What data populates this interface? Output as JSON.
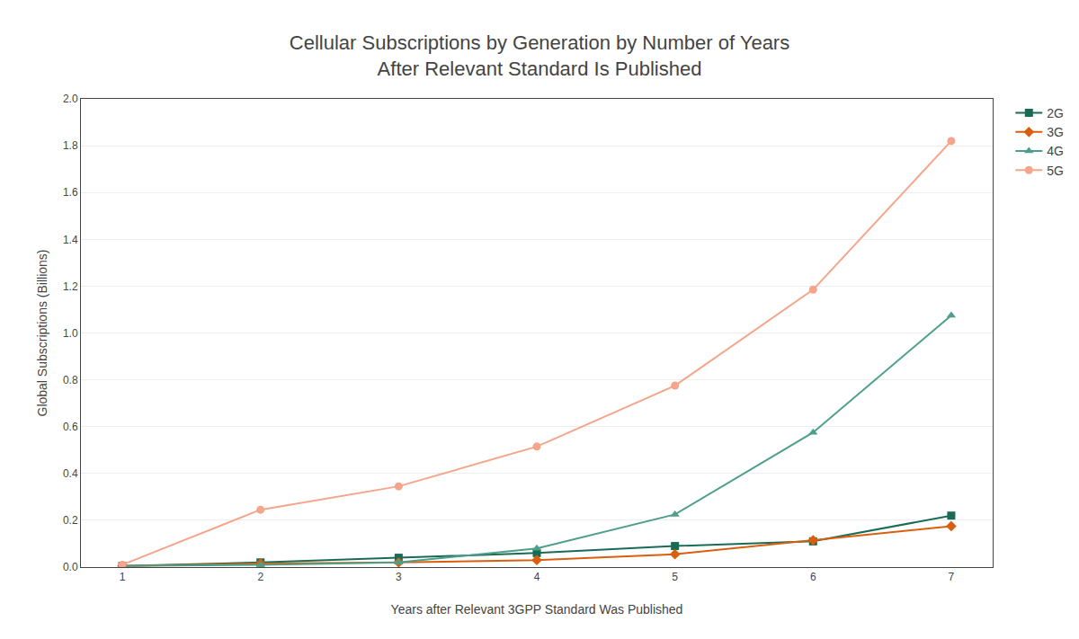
{
  "chart_data": {
    "type": "line",
    "title": "Cellular Subscriptions by Generation by Number of Years\nAfter Relevant Standard Is Published",
    "x_label": "Years after Relevant 3GPP Standard Was Published",
    "y_label": "Global Subscriptions (Billions)",
    "x": [
      1,
      2,
      3,
      4,
      5,
      6,
      7
    ],
    "series": [
      {
        "name": "2G",
        "color": "#1a6b55",
        "marker": "square",
        "values": [
          0.005,
          0.02,
          0.04,
          0.06,
          0.09,
          0.11,
          0.22
        ]
      },
      {
        "name": "3G",
        "color": "#d95f0e",
        "marker": "diamond",
        "values": [
          0.005,
          0.015,
          0.02,
          0.03,
          0.055,
          0.115,
          0.175
        ]
      },
      {
        "name": "4G",
        "color": "#4d9e8a",
        "marker": "triangle-up",
        "values": [
          0.005,
          0.01,
          0.02,
          0.08,
          0.225,
          0.575,
          1.075
        ]
      },
      {
        "name": "5G",
        "color": "#f4a58a",
        "marker": "circle",
        "values": [
          0.01,
          0.245,
          0.345,
          0.515,
          0.775,
          1.185,
          1.82
        ]
      }
    ],
    "xlim": [
      0.7,
      7.3
    ],
    "xticks": [
      1,
      2,
      3,
      4,
      5,
      6,
      7
    ],
    "ylim": [
      0.0,
      2.0
    ],
    "yticks": [
      {
        "value": 0,
        "label": "0.0"
      },
      0.2,
      0.4,
      0.6,
      0.8,
      {
        "value": 1,
        "label": "1.0"
      },
      1.2,
      1.4,
      1.6,
      1.8,
      {
        "value": 2,
        "label": "2.0"
      }
    ],
    "grid": "y",
    "legend": "right"
  }
}
